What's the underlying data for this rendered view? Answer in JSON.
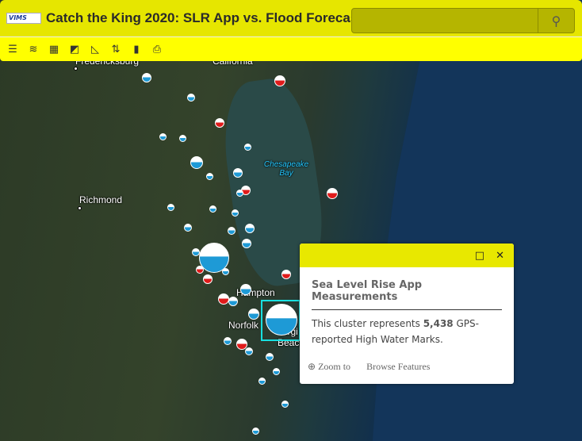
{
  "header": {
    "logo_text": "VIMS",
    "title": "Catch the King 2020: SLR App vs. Flood Forecast",
    "search_placeholder": "",
    "search_icon": "search-icon"
  },
  "toolbar": {
    "tools": [
      {
        "name": "legend-icon",
        "glyph": "☰"
      },
      {
        "name": "layers-icon",
        "glyph": "≋"
      },
      {
        "name": "basemap-gallery-icon",
        "glyph": "▦"
      },
      {
        "name": "swipe-icon",
        "glyph": "◩"
      },
      {
        "name": "measure-icon",
        "glyph": "◺"
      },
      {
        "name": "share-icon",
        "glyph": "⇅"
      },
      {
        "name": "bookmark-icon",
        "glyph": "▮"
      },
      {
        "name": "print-icon",
        "glyph": "⎙"
      }
    ]
  },
  "map": {
    "labels": {
      "fredericksburg": "Fredericksburg",
      "california": "California",
      "richmond": "Richmond",
      "bay": "Chesapeake Bay",
      "hampton": "Hampton",
      "norfolk": "Norfolk",
      "virginia_beach_1": "Virgi",
      "virginia_beach_2": "Beach"
    },
    "marker_colors": {
      "blue": "#1e9ad6",
      "red": "#e01b1b"
    }
  },
  "popup": {
    "title": "Sea Level Rise App Measurements",
    "body_prefix": "This cluster represents ",
    "count": "5,438",
    "body_suffix": " GPS-reported High Water Marks.",
    "zoom_label": "Zoom to",
    "browse_label": "Browse Features",
    "maximize_icon": "maximize-icon",
    "close_icon": "close-icon"
  }
}
